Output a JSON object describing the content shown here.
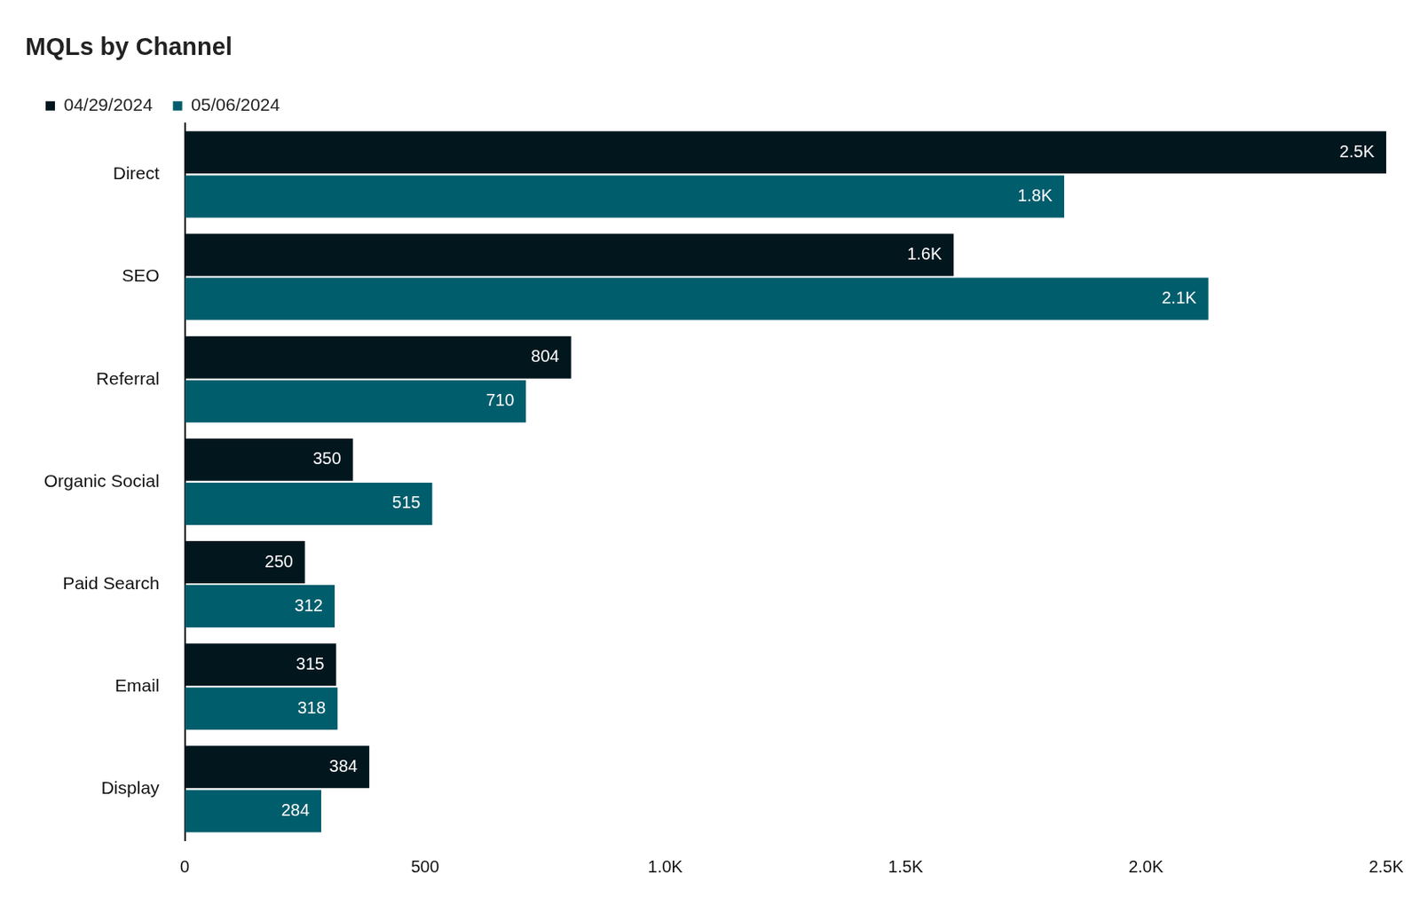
{
  "chart_data": {
    "type": "bar",
    "title": "MQLs by Channel",
    "orientation": "horizontal",
    "categories": [
      "Direct",
      "SEO",
      "Referral",
      "Organic Social",
      "Paid Search",
      "Email",
      "Display"
    ],
    "series": [
      {
        "name": "04/29/2024",
        "color": "#02161e",
        "values": [
          2500,
          1600,
          804,
          350,
          250,
          315,
          384
        ],
        "value_labels": [
          "2.5K",
          "1.6K",
          "804",
          "350",
          "250",
          "315",
          "384"
        ]
      },
      {
        "name": "05/06/2024",
        "color": "#005d6c",
        "values": [
          1830,
          2130,
          710,
          515,
          312,
          318,
          284
        ],
        "value_labels": [
          "1.8K",
          "2.1K",
          "710",
          "515",
          "312",
          "318",
          "284"
        ]
      }
    ],
    "xlim": [
      0,
      2500
    ],
    "xticks": [
      0,
      500,
      {
        "value": 1000,
        "label": "1.0K"
      },
      {
        "value": 1500,
        "label": "1.5K"
      },
      {
        "value": 2000,
        "label": "2.0K"
      },
      {
        "value": 2500,
        "label": "2.5K"
      }
    ],
    "grid": false,
    "legend": "top-left",
    "data_labels": true
  }
}
